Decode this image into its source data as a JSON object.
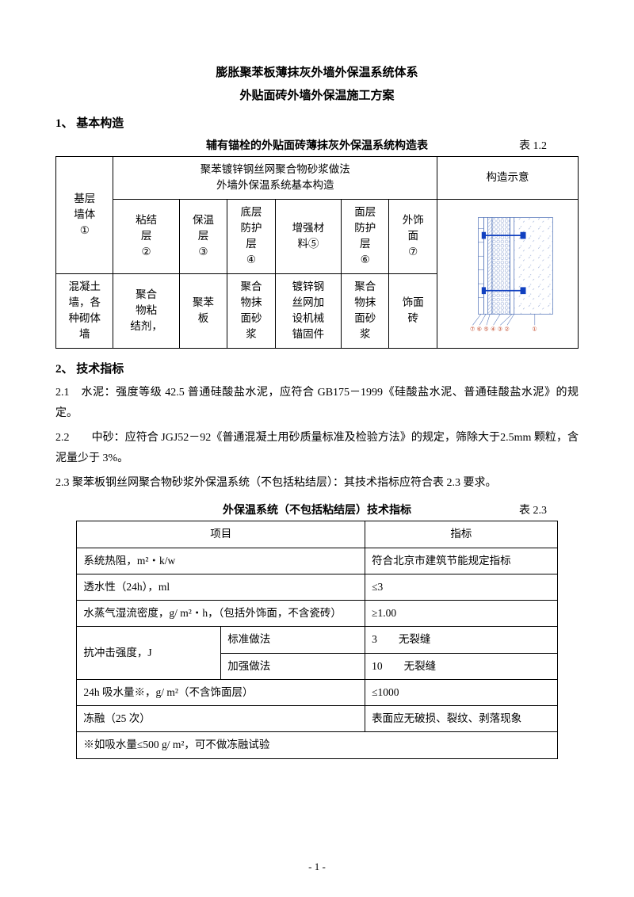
{
  "title1": "膨胀聚苯板薄抹灰外墙外保温系统体系",
  "title2": "外贴面砖外墙外保温施工方案",
  "sec1": "1、 基本构造",
  "table1": {
    "caption": "辅有锚栓的外贴面砖薄抹灰外保温系统构造表",
    "label": "表 1.2",
    "headMerge": "聚苯镀锌钢丝网聚合物砂浆做法\n外墙外保温系统基本构造",
    "diagHead": "构造示意",
    "rowA": "基层\n墙体\n①",
    "h1": "粘结\n层\n②",
    "h2": "保温\n层\n③",
    "h3": "底层\n防护\n层\n④",
    "h4": "增强材\n料⑤",
    "h5": "面层\n防护\n层\n⑥",
    "h6": "外饰\n面\n⑦",
    "r1": "混凝土\n墙，各\n种砌体\n墙",
    "d1": "聚合\n物粘\n结剂，",
    "d2": "聚苯\n板",
    "d3": "聚合\n物抹\n面砂\n浆",
    "d4": "镀锌钢\n丝网加\n设机械\n锚固件",
    "d5": "聚合\n物抹\n面砂\n浆",
    "d6": "饰面\n砖"
  },
  "sec2": "2、 技术指标",
  "p21": "2.1　水泥：强度等级 42.5 普通硅酸盐水泥，应符合 GB175－1999《硅酸盐水泥、普通硅酸盐水泥》的规定。",
  "p22": "2.2　　中砂：应符合 JGJ52－92《普通混凝土用砂质量标准及检验方法》的规定，筛除大于2.5mm 颗粒，含泥量少于 3%。",
  "p23": "2.3 聚苯板钢丝网聚合物砂浆外保温系统（不包括粘结层）：其技术指标应符合表 2.3 要求。",
  "table2": {
    "caption": "外保温系统（不包括粘结层）技术指标",
    "label": "表 2.3",
    "h1": "项目",
    "h2": "指标",
    "r1a": "系统热阻，m²・k/w",
    "r1b": "符合北京市建筑节能规定指标",
    "r2a": "透水性（24h），ml",
    "r2b": "≤3",
    "r3a": "水蒸气湿流密度，g/ m²・h，（包括外饰面，不含瓷砖）",
    "r3b": "≥1.00",
    "r4a": "抗冲击强度，J",
    "r4b": "标准做法",
    "r4c": "3　　无裂缝",
    "r5b": "加强做法",
    "r5c": "10　　无裂缝",
    "r6a": "24h 吸水量※，g/ m²（不含饰面层）",
    "r6b": "≤1000",
    "r7a": "冻融（25 次）",
    "r7b": "表面应无破损、裂纹、剥落现象",
    "r8a": "※如吸水量≤500 g/ m²，可不做冻融试验"
  },
  "pagenum": "- 1 -",
  "diagram": {
    "colors": {
      "line": "#4a6db5",
      "anchor": "#1040c0",
      "pattern": "#8aa0d0",
      "bg": "#ffffff",
      "text": "#c04020"
    },
    "labels": [
      "⑦",
      "⑥",
      "⑤",
      "④",
      "③",
      "②",
      "①"
    ]
  }
}
